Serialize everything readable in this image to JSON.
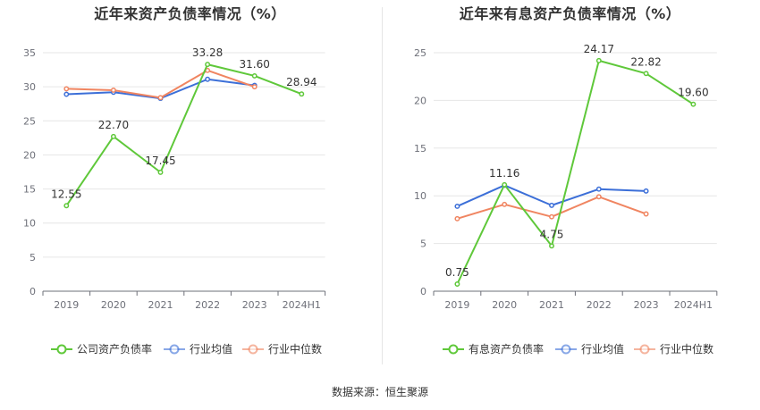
{
  "colors": {
    "company": "#5fc83a",
    "industry_avg": "#3c6fd8",
    "industry_median": "#f08561",
    "grid": "#e6e6e6",
    "axis_text": "#6e7079"
  },
  "chart_data": [
    {
      "type": "line",
      "title": "近年来资产负债率情况（%）",
      "categories": [
        "2019",
        "2020",
        "2021",
        "2022",
        "2023",
        "2024H1"
      ],
      "ylim": [
        0,
        35
      ],
      "yticks": [
        "0",
        "5",
        "10",
        "15",
        "20",
        "25",
        "30",
        "35"
      ],
      "grid": true,
      "legend_position": "bottom",
      "series": [
        {
          "name": "公司资产负债率",
          "color_key": "company",
          "values": [
            12.55,
            22.7,
            17.45,
            33.28,
            31.6,
            28.94
          ],
          "labels": [
            "12.55",
            "22.70",
            "17.45",
            "33.28",
            "31.60",
            "28.94"
          ]
        },
        {
          "name": "行业均值",
          "color_key": "industry_avg",
          "values": [
            28.9,
            29.2,
            28.3,
            31.1,
            30.2,
            null
          ]
        },
        {
          "name": "行业中位数",
          "color_key": "industry_median",
          "values": [
            29.7,
            29.5,
            28.4,
            32.4,
            30.0,
            null
          ]
        }
      ]
    },
    {
      "type": "line",
      "title": "近年来有息资产负债率情况（%）",
      "categories": [
        "2019",
        "2020",
        "2021",
        "2022",
        "2023",
        "2024H1"
      ],
      "ylim": [
        0,
        25
      ],
      "yticks": [
        "0",
        "5",
        "10",
        "15",
        "20",
        "25"
      ],
      "grid": true,
      "legend_position": "bottom",
      "series": [
        {
          "name": "有息资产负债率",
          "color_key": "company",
          "values": [
            0.75,
            11.16,
            4.75,
            24.17,
            22.82,
            19.6
          ],
          "labels": [
            "0.75",
            "11.16",
            "4.75",
            "24.17",
            "22.82",
            "19.60"
          ]
        },
        {
          "name": "行业均值",
          "color_key": "industry_avg",
          "values": [
            8.9,
            11.1,
            9.0,
            10.7,
            10.5,
            null
          ]
        },
        {
          "name": "行业中位数",
          "color_key": "industry_median",
          "values": [
            7.6,
            9.1,
            7.8,
            9.9,
            8.1,
            null
          ]
        }
      ]
    }
  ],
  "footer": {
    "source": "数据来源：恒生聚源"
  }
}
